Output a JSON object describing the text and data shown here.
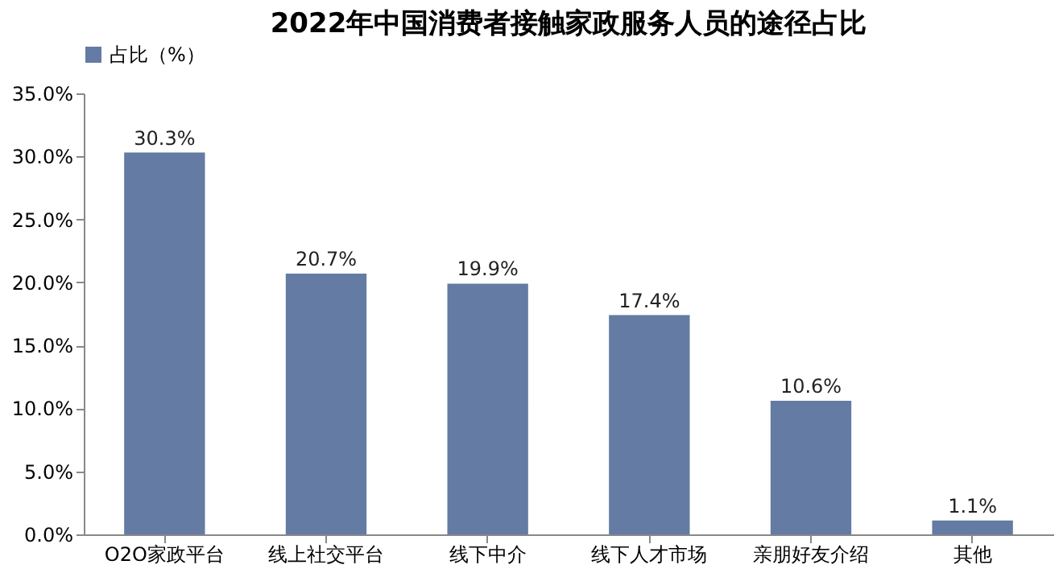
{
  "chart_data": {
    "type": "bar",
    "title": "2022年中国消费者接触家政服务人员的途径占比",
    "categories": [
      "O2O家政平台",
      "线上社交平台",
      "线下中介",
      "线下人才市场",
      "亲朋好友介绍",
      "其他"
    ],
    "series": [
      {
        "name": "占比（%）",
        "color": "#647ba3",
        "values": [
          30.3,
          20.7,
          19.9,
          17.4,
          10.6,
          1.1
        ]
      }
    ],
    "ylim": [
      0,
      35
    ],
    "yticks": [
      {
        "value": 0,
        "label": "0.0%"
      },
      {
        "value": 5,
        "label": "5.0%"
      },
      {
        "value": 10,
        "label": "10.0%"
      },
      {
        "value": 15,
        "label": "15.0%"
      },
      {
        "value": 20,
        "label": "20.0%"
      },
      {
        "value": 25,
        "label": "25.0%"
      },
      {
        "value": 30,
        "label": "30.0%"
      },
      {
        "value": 35,
        "label": "35.0%"
      }
    ],
    "value_labels": [
      "30.3%",
      "20.7%",
      "19.9%",
      "17.4%",
      "10.6%",
      "1.1%"
    ],
    "legend": "top",
    "grid": false
  }
}
